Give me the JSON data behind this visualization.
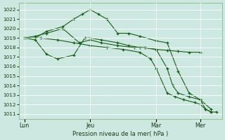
{
  "background_color": "#cce8e0",
  "grid_color": "#b8d8d0",
  "line_color": "#1a5c1a",
  "marker_color": "#1a5c1a",
  "xlabel": "Pression niveau de la mer( hPa )",
  "ylim": [
    1010.5,
    1022.7
  ],
  "yticks": [
    1011,
    1012,
    1013,
    1014,
    1015,
    1016,
    1017,
    1018,
    1019,
    1020,
    1021,
    1022
  ],
  "xtick_labels": [
    "Lun",
    "Jeu",
    "Mar",
    "Mer"
  ],
  "xtick_positions": [
    0,
    24,
    48,
    64
  ],
  "xlim": [
    -2,
    72
  ],
  "series": [
    {
      "x": [
        0,
        4,
        8,
        14,
        18,
        21,
        24,
        27,
        30,
        34,
        38,
        42,
        48,
        52,
        56,
        60,
        64,
        68
      ],
      "y": [
        1019,
        1019,
        1019.7,
        1020.2,
        1021.0,
        1021.5,
        1022.0,
        1021.5,
        1021.0,
        1019.5,
        1019.5,
        1019.2,
        1018.7,
        1018.5,
        1015.5,
        1013.2,
        1012.5,
        1011.5
      ]
    },
    {
      "x": [
        0,
        4,
        8,
        12,
        18,
        22,
        24,
        28,
        34,
        38,
        42,
        48,
        52,
        56,
        60,
        64
      ],
      "y": [
        1019,
        1018.8,
        1017.3,
        1016.8,
        1017.2,
        1019.0,
        1019.0,
        1018.8,
        1018.5,
        1018.2,
        1018.0,
        1017.8,
        1017.7,
        1017.6,
        1017.5,
        1017.5
      ]
    },
    {
      "x": [
        0,
        4,
        8,
        14,
        20,
        24,
        28,
        34,
        40,
        44,
        48,
        52,
        54,
        56,
        60,
        64,
        66,
        68
      ],
      "y": [
        1019,
        1019.2,
        1019.5,
        1020.0,
        1018.5,
        1018.8,
        1018.5,
        1018.2,
        1018.0,
        1018.0,
        1017.8,
        1015.8,
        1014.0,
        1013.2,
        1012.8,
        1012.5,
        1011.5,
        1011.2
      ]
    },
    {
      "x": [
        0,
        6,
        12,
        18,
        24,
        30,
        36,
        42,
        46,
        48,
        52,
        55,
        58,
        62,
        64,
        66,
        68,
        70
      ],
      "y": [
        1019,
        1019.0,
        1018.8,
        1018.5,
        1018.2,
        1018.0,
        1017.8,
        1017.5,
        1016.8,
        1015.8,
        1013.2,
        1012.8,
        1012.5,
        1012.2,
        1012.0,
        1011.5,
        1011.2,
        1011.2
      ]
    }
  ]
}
